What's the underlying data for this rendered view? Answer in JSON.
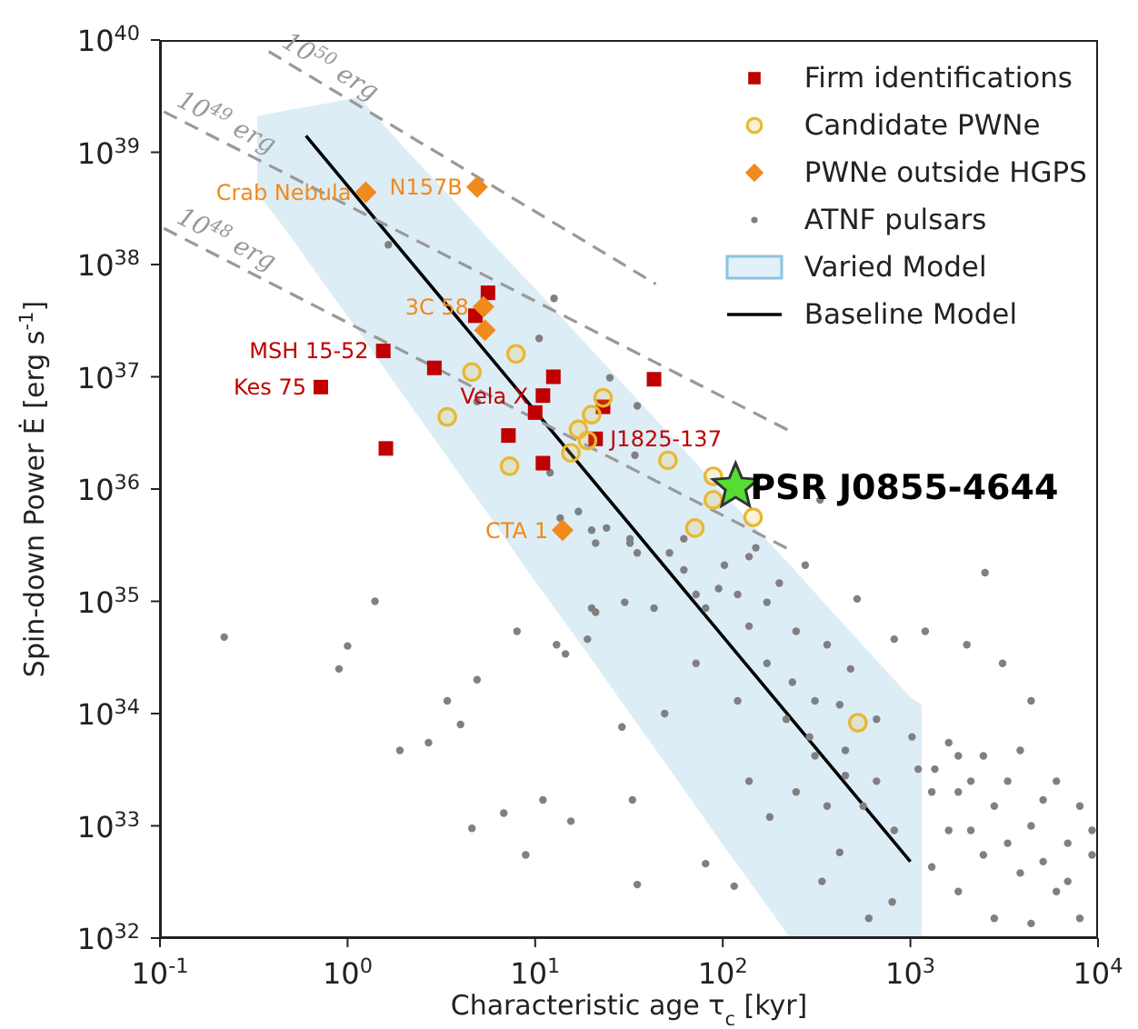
{
  "chart_data": {
    "type": "scatter",
    "xlabel": "Characteristic age τ$_{c}$ [kyr]",
    "ylabel": "Spin-down Power Ė [erg s$^{-1}$]",
    "log": "xy",
    "xlim": [
      0.1,
      10000
    ],
    "ylim": [
      1e+32,
      1e+40
    ],
    "xticks": [
      {
        "value": 0.1,
        "label": "10$^{-1}$"
      },
      {
        "value": 1,
        "label": "10$^{0}$"
      },
      {
        "value": 10,
        "label": "10$^{1}$"
      },
      {
        "value": 100,
        "label": "10$^{2}$"
      },
      {
        "value": 1000,
        "label": "10$^{3}$"
      },
      {
        "value": 10000,
        "label": "10$^{4}$"
      }
    ],
    "yticks": [
      {
        "value": 1e+32,
        "label": "10$^{32}$"
      },
      {
        "value": 1e+33,
        "label": "10$^{33}$"
      },
      {
        "value": 1e+34,
        "label": "10$^{34}$"
      },
      {
        "value": 1e+35,
        "label": "10$^{35}$"
      },
      {
        "value": 1e+36,
        "label": "10$^{36}$"
      },
      {
        "value": 1e+37,
        "label": "10$^{37}$"
      },
      {
        "value": 1e+38,
        "label": "10$^{38}$"
      },
      {
        "value": 1e+39,
        "label": "10$^{39}$"
      },
      {
        "value": 1e+40,
        "label": "10$^{40}$"
      }
    ],
    "legend": "top right",
    "series": [
      {
        "type": "scatter",
        "name": "Firm identifications",
        "color": "#c00000",
        "marker": "square",
        "x": [
          0.72,
          1.55,
          1.6,
          2.9,
          5.6,
          4.8,
          7.2,
          12.5,
          11,
          10,
          11,
          21,
          23,
          43
        ],
        "values": [
          8.1e+36,
          1.7e+37,
          2.3e+36,
          1.2e+37,
          5.6e+37,
          3.5e+37,
          3e+36,
          1e+37,
          6.8e+36,
          4.8e+36,
          1.7e+36,
          2.8e+36,
          5.4e+36,
          9.5e+36
        ]
      },
      {
        "type": "scatter",
        "name": "Candidate PWNe",
        "color": "#e8b830",
        "marker": "circle",
        "x": [
          7.9,
          4.6,
          3.4,
          7.3,
          23,
          20,
          17,
          19,
          15.5,
          51,
          89,
          89,
          71,
          145,
          525
        ],
        "values": [
          1.6e+37,
          1.1e+37,
          4.4e+36,
          1.6e+36,
          6.5e+36,
          4.6e+36,
          3.4e+36,
          2.7e+36,
          2.1e+36,
          1.8e+36,
          1.3e+36,
          8e+35,
          4.5e+35,
          5.6e+35,
          8.3e+33
        ]
      },
      {
        "type": "scatter",
        "name": "PWNe outside HGPS",
        "color": "#f08a1c",
        "marker": "diamond",
        "x": [
          1.25,
          4.9,
          5.3,
          5.4,
          14
        ],
        "values": [
          4.4e+38,
          4.9e+38,
          4.2e+37,
          2.6e+37,
          4.3e+35
        ]
      },
      {
        "type": "scatter",
        "name": "ATNF pulsars",
        "color": "#808080",
        "marker": "circle",
        "x": [
          0.22,
          1.4,
          1.0,
          0.9,
          4.9,
          3.4,
          4.0,
          1.9,
          2.7,
          8.0,
          13,
          14.5,
          19,
          21,
          30,
          29,
          6.8,
          11,
          15.5,
          4.6,
          8.9,
          33,
          35,
          1.65,
          12.6,
          10.5,
          4.9,
          25,
          35,
          13.6,
          17,
          20,
          24,
          21,
          32,
          35,
          12,
          330,
          2500,
          2000,
          3100,
          4400,
          1200,
          820,
          520,
          275,
          150,
          102,
          62,
          49,
          81,
          115,
          178,
          246,
          338,
          420,
          800,
          600,
          218,
          138,
          360,
          246,
          172,
          95,
          72,
          120,
          310,
          480,
          660,
          450,
          310,
          660,
          820,
          1020,
          1100,
          1600,
          2450,
          3850,
          6000,
          8000,
          1800,
          2800,
          4400,
          6900,
          9300,
          1600,
          2450,
          3850,
          6000,
          8000,
          1800,
          2800,
          4400,
          1300,
          1300,
          3300,
          5100,
          2100,
          3300,
          5100,
          6900,
          9300,
          1800,
          1350,
          2100,
          450,
          560,
          360,
          290,
          172,
          235,
          420,
          138,
          200,
          81,
          32,
          52,
          62,
          20,
          43,
          72,
          138,
          120,
          34
        ],
        "values": [
          4.8e+34,
          1e+35,
          4e+34,
          2.5e+34,
          2e+34,
          1.3e+34,
          8e+33,
          4.7e+33,
          5.5e+33,
          5.4e+34,
          4.1e+34,
          3.4e+34,
          4.6e+34,
          8e+34,
          9.8e+34,
          7.6e+33,
          1.3e+33,
          1.7e+33,
          1.1e+33,
          9.5e+32,
          5.5e+32,
          1.7e+33,
          3e+32,
          1.5e+38,
          5e+37,
          2.2e+37,
          6e+36,
          9.8e+36,
          5.5e+36,
          5.5e+35,
          6.3e+35,
          4.3e+35,
          4.5e+35,
          3.3e+35,
          3.6e+35,
          2.7e+35,
          1.4e+36,
          8e+35,
          1.8e+35,
          4.1e+34,
          2.8e+34,
          1.3e+34,
          5.4e+34,
          4.6e+34,
          1.05e+35,
          2.1e+35,
          3e+35,
          2.1e+35,
          3.6e+35,
          1e+34,
          4.6e+32,
          2.9e+32,
          1.2e+33,
          2e+33,
          3.2e+32,
          5.8e+32,
          2.1e+32,
          1.5e+32,
          8.9e+33,
          2.5e+33,
          4.1e+34,
          5.4e+34,
          9.8e+34,
          1.3e+35,
          2.8e+34,
          1.3e+34,
          1.3e+34,
          2.5e+34,
          8.9e+33,
          4.7e+33,
          4.2e+33,
          2.5e+33,
          9.1e+32,
          6.2e+33,
          3.2e+33,
          5.5e+33,
          4.2e+33,
          4.7e+33,
          2.5e+33,
          1.5e+33,
          2e+33,
          1.5e+33,
          1e+33,
          7e+32,
          5.5e+32,
          9.1e+32,
          5.5e+32,
          3.8e+32,
          2.6e+32,
          1.5e+32,
          2.6e+32,
          1.5e+32,
          1.35e+32,
          4.3e+32,
          2e+33,
          2.5e+33,
          1.7e+33,
          9.1e+32,
          7e+32,
          4.8e+32,
          3.2e+32,
          9.1e+32,
          4.2e+33,
          3.2e+33,
          2.5e+33,
          2.8e+33,
          1.5e+33,
          1.5e+33,
          6.2e+33,
          2.8e+34,
          1.9e+34,
          1.2e+34,
          6e+34,
          1.45e+35,
          8.7e+34,
          3.3e+35,
          2.7e+35,
          1.9e+35,
          8.7e+34,
          8.7e+34,
          1.15e+35,
          2.5e+35,
          1.15e+35,
          2e+36
        ]
      },
      {
        "type": "line",
        "name": "Varied Model",
        "color": "#8cc4e0",
        "marker": "none",
        "x": [
          0.33,
          0.5,
          0.75,
          1.15,
          2,
          3.5,
          6,
          10,
          18,
          32,
          56,
          100,
          178,
          229,
          316,
          562,
          1000,
          1150
        ],
        "values": [
          null,
          null,
          null,
          null,
          null,
          null,
          null,
          null,
          null,
          null,
          null,
          null,
          null,
          null,
          null,
          null,
          null,
          null
        ],
        "upper": [
          2.1e+39,
          2.4e+39,
          2.7e+39,
          3.1e+39,
          1.1e+39,
          4.1e+38,
          1.5e+38,
          6.1e+37,
          2.1e+37,
          7.4e+36,
          2.7e+36,
          9.3e+35,
          3.3e+35,
          2.1e+35,
          1.15e+35,
          4e+34,
          1.4e+34,
          1.2e+34
        ],
        "lower": [
          4.4e+38,
          1.75e+38,
          6.7e+37,
          2.5e+37,
          6.7e+36,
          1.8e+36,
          5.1e+35,
          1.5e+35,
          3.9e+34,
          1e+34,
          2.7e+33,
          6.8e+32,
          1.8e+32,
          1e+32,
          1e+32,
          1e+32,
          1e+32,
          1e+32
        ]
      },
      {
        "type": "line",
        "name": "Baseline Model",
        "color": "#000000",
        "marker": "none",
        "x": [
          0.6,
          1000
        ],
        "values": [
          1.4e+39,
          4.8e+32
        ]
      },
      {
        "type": "line",
        "name": "10$^{50}$ erg",
        "color": "#999999",
        "line_style": "dashed",
        "marker": "none",
        "x": [
          0.38,
          44
        ],
        "values": [
          7.9e+39,
          6.7e+37
        ]
      },
      {
        "type": "line",
        "name": "10$^{49}$ erg",
        "color": "#999999",
        "line_style": "dashed",
        "marker": "none",
        "x": [
          0.105,
          235
        ],
        "values": [
          2.3e+39,
          3.2e+36
        ]
      },
      {
        "type": "line",
        "name": "10$^{48}$ erg",
        "color": "#999999",
        "line_style": "dashed",
        "marker": "none",
        "x": [
          0.105,
          235
        ],
        "values": [
          2.1e+38,
          2.8e+35
        ]
      },
      {
        "type": "scatter",
        "color": "#55dd33",
        "marker": "star",
        "x": [
          117
        ],
        "values": [
          1.05e+36
        ]
      }
    ],
    "annotations": [
      {
        "text": "Crab Nebula",
        "x": 1.25,
        "y": 4.4e+38
      },
      {
        "text": "N157B",
        "x": 4.9,
        "y": 4.9e+38
      },
      {
        "text": "3C 58",
        "x": 5.3,
        "y": 4.2e+37
      },
      {
        "text": "MSH 15-52",
        "x": 1.55,
        "y": 1.7e+37
      },
      {
        "text": "Kes 75",
        "x": 0.72,
        "y": 8.1e+36
      },
      {
        "text": "Vela X",
        "x": 11,
        "y": 6.8e+36
      },
      {
        "text": "J1825-137",
        "x": 21,
        "y": 2.8e+36
      },
      {
        "text": "CTA 1",
        "x": 14,
        "y": 4.3e+35
      },
      {
        "text": "PSR J0855-4644",
        "x": 117,
        "y": 1.05e+36
      }
    ]
  }
}
